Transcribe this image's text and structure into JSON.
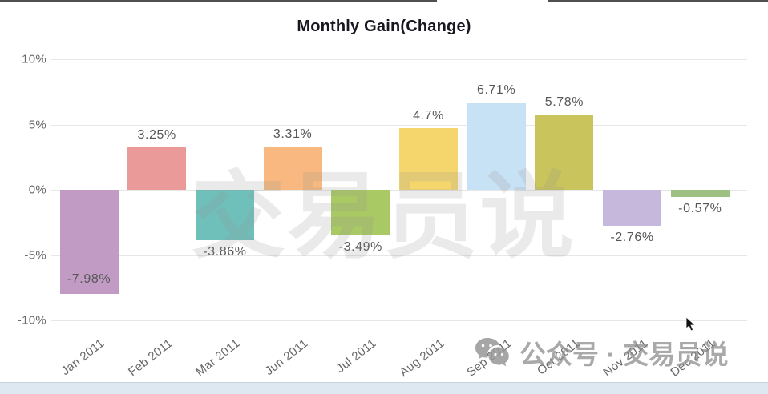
{
  "page": {
    "title": "Monthly Gain(Change)"
  },
  "chart_data": {
    "type": "bar",
    "title": "Monthly Gain(Change)",
    "categories": [
      "Jan 2011",
      "Feb 2011",
      "Mar 2011",
      "Jun 2011",
      "Jul 2011",
      "Aug 2011",
      "Sep 2011",
      "Oct 2011",
      "Nov 2011",
      "Dec 2011"
    ],
    "values": [
      -7.98,
      3.25,
      -3.86,
      3.31,
      -3.49,
      4.7,
      6.71,
      5.78,
      -2.76,
      -0.57
    ],
    "value_labels": [
      "-7.98%",
      "3.25%",
      "-3.86%",
      "3.31%",
      "-3.49%",
      "4.7%",
      "6.71%",
      "5.78%",
      "-2.76%",
      "-0.57%"
    ],
    "bar_colors": [
      "#c19bc4",
      "#ea9a98",
      "#6fc0bb",
      "#f8b87f",
      "#a9c964",
      "#f4d66d",
      "#c8e2f5",
      "#c9c45b",
      "#c6b8dd",
      "#9dc183"
    ],
    "yticks": {
      "labels": [
        "10%",
        "5%",
        "0%",
        "-5%",
        "-10%"
      ],
      "values": [
        10,
        5,
        0,
        -5,
        -10
      ]
    },
    "ylim": [
      -10,
      10
    ],
    "grid": true,
    "legend": "none",
    "xlabel": "",
    "ylabel": ""
  },
  "watermarks": {
    "center_text": "交易员说",
    "footer_text": "公众号 · 交易员说",
    "footer_icon": "wechat-icon"
  },
  "colors": {
    "grid": "#e7e7e7",
    "tick_text": "#666666",
    "value_text": "#565656",
    "title_text": "#17171f",
    "bottom_strip": "#dde8f0",
    "top_border": "#4f4f4f"
  }
}
